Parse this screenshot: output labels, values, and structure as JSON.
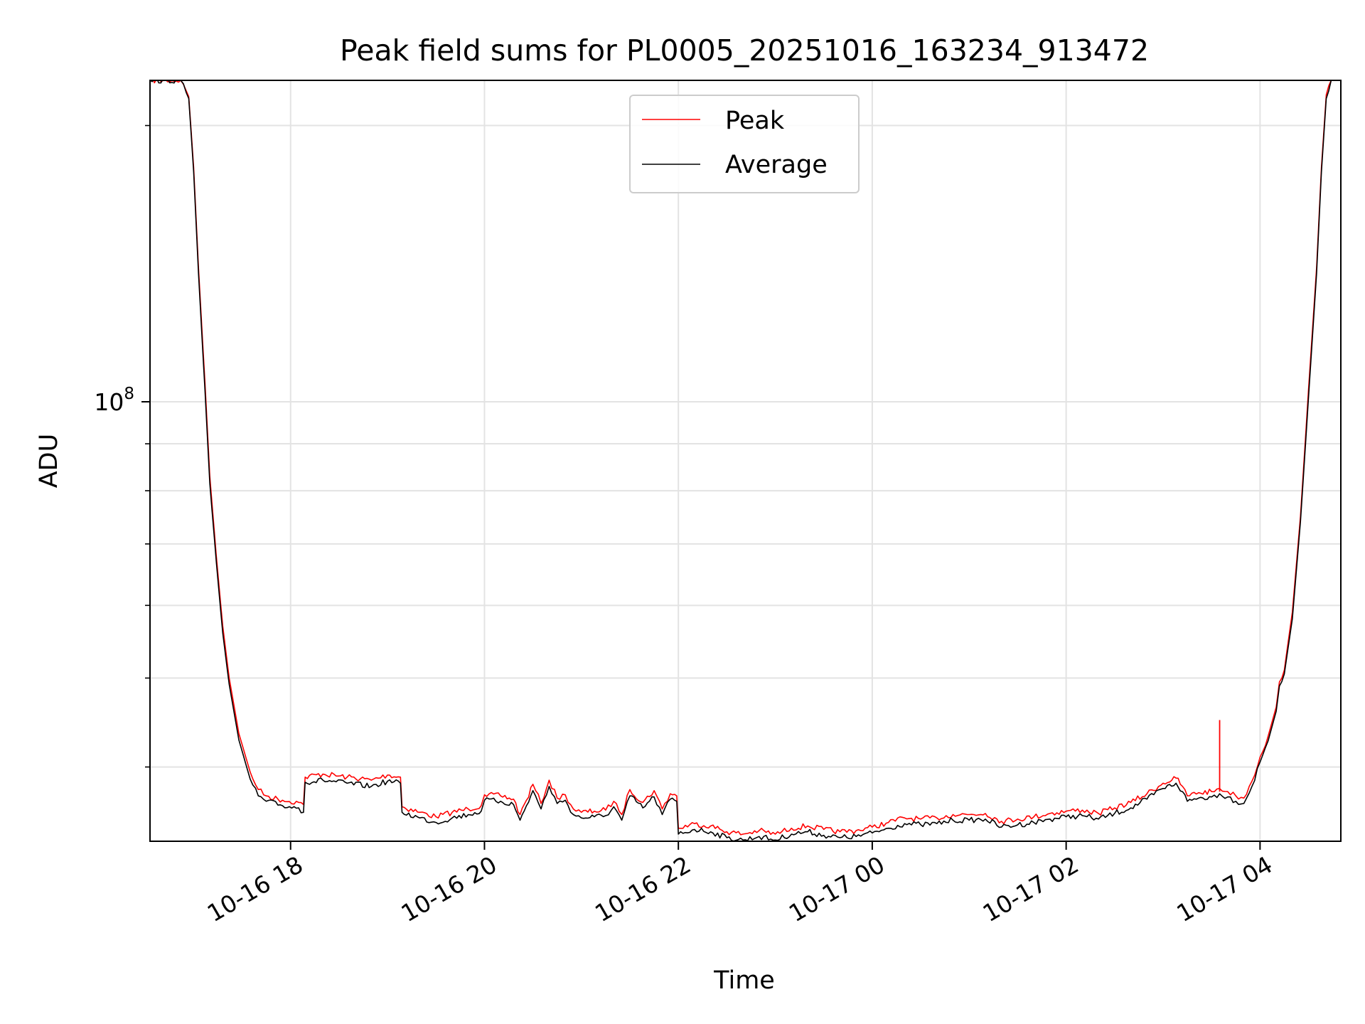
{
  "chart_data": {
    "type": "line",
    "title": "Peak field sums for PL0005_20251016_163234_913472",
    "xlabel": "Time",
    "ylabel": "ADU",
    "y_scale": "log",
    "ylim": [
      33200000,
      224000000
    ],
    "xlim": [
      "2025-10-16 16:33",
      "2025-10-17 04:50"
    ],
    "grid": true,
    "legend_position": "top-center",
    "x_ticks": [
      {
        "value": "2025-10-16 18:00",
        "label": "10-16 18"
      },
      {
        "value": "2025-10-16 20:00",
        "label": "10-16 20"
      },
      {
        "value": "2025-10-16 22:00",
        "label": "10-16 22"
      },
      {
        "value": "2025-10-17 00:00",
        "label": "10-17 00"
      },
      {
        "value": "2025-10-17 02:00",
        "label": "10-17 02"
      },
      {
        "value": "2025-10-17 04:00",
        "label": "10-17 04"
      }
    ],
    "y_major_ticks": [
      {
        "value": 100000000,
        "base": "10",
        "exp": "8"
      }
    ],
    "y_minor_ticks": [
      40000000,
      50000000,
      60000000,
      70000000,
      80000000,
      90000000,
      200000000
    ],
    "series": [
      {
        "name": "Peak",
        "color": "#ff0000",
        "points": [
          [
            "2025-10-16 16:33",
            224000000
          ],
          [
            "2025-10-16 16:52",
            224000000
          ],
          [
            "2025-10-16 16:57",
            215000000
          ],
          [
            "2025-10-16 17:00",
            180000000
          ],
          [
            "2025-10-16 17:03",
            140000000
          ],
          [
            "2025-10-16 17:07",
            105000000
          ],
          [
            "2025-10-16 17:10",
            83000000
          ],
          [
            "2025-10-16 17:14",
            68000000
          ],
          [
            "2025-10-16 17:18",
            57000000
          ],
          [
            "2025-10-16 17:22",
            50000000
          ],
          [
            "2025-10-16 17:28",
            43500000
          ],
          [
            "2025-10-16 17:35",
            39500000
          ],
          [
            "2025-10-16 17:40",
            37800000
          ],
          [
            "2025-10-16 17:45",
            37200000
          ],
          [
            "2025-10-16 17:55",
            36800000
          ],
          [
            "2025-10-16 18:05",
            36600000
          ],
          [
            "2025-10-16 18:08",
            36400000
          ],
          [
            "2025-10-16 18:09",
            39000000
          ],
          [
            "2025-10-16 18:20",
            39300000
          ],
          [
            "2025-10-16 18:35",
            39000000
          ],
          [
            "2025-10-16 18:50",
            38700000
          ],
          [
            "2025-10-16 19:00",
            39200000
          ],
          [
            "2025-10-16 19:08",
            39000000
          ],
          [
            "2025-10-16 19:09",
            36200000
          ],
          [
            "2025-10-16 19:20",
            35700000
          ],
          [
            "2025-10-16 19:30",
            35300000
          ],
          [
            "2025-10-16 19:40",
            35700000
          ],
          [
            "2025-10-16 19:50",
            36000000
          ],
          [
            "2025-10-16 19:58",
            36300000
          ],
          [
            "2025-10-16 20:00",
            37300000
          ],
          [
            "2025-10-16 20:10",
            37200000
          ],
          [
            "2025-10-16 20:18",
            36900000
          ],
          [
            "2025-10-16 20:22",
            35500000
          ],
          [
            "2025-10-16 20:26",
            36800000
          ],
          [
            "2025-10-16 20:30",
            38300000
          ],
          [
            "2025-10-16 20:35",
            36500000
          ],
          [
            "2025-10-16 20:40",
            38700000
          ],
          [
            "2025-10-16 20:45",
            37000000
          ],
          [
            "2025-10-16 20:50",
            37300000
          ],
          [
            "2025-10-16 20:55",
            36000000
          ],
          [
            "2025-10-16 21:00",
            35700000
          ],
          [
            "2025-10-16 21:08",
            35800000
          ],
          [
            "2025-10-16 21:15",
            35900000
          ],
          [
            "2025-10-16 21:20",
            36700000
          ],
          [
            "2025-10-16 21:25",
            35500000
          ],
          [
            "2025-10-16 21:30",
            37800000
          ],
          [
            "2025-10-16 21:38",
            36600000
          ],
          [
            "2025-10-16 21:45",
            37700000
          ],
          [
            "2025-10-16 21:50",
            36000000
          ],
          [
            "2025-10-16 21:55",
            37400000
          ],
          [
            "2025-10-16 21:59",
            37200000
          ],
          [
            "2025-10-16 22:00",
            34300000
          ],
          [
            "2025-10-16 22:10",
            34700000
          ],
          [
            "2025-10-16 22:20",
            34500000
          ],
          [
            "2025-10-16 22:30",
            34000000
          ],
          [
            "2025-10-16 22:40",
            33800000
          ],
          [
            "2025-10-16 22:50",
            34100000
          ],
          [
            "2025-10-16 23:00",
            33800000
          ],
          [
            "2025-10-16 23:10",
            34300000
          ],
          [
            "2025-10-16 23:20",
            34500000
          ],
          [
            "2025-10-16 23:30",
            34200000
          ],
          [
            "2025-10-16 23:40",
            34000000
          ],
          [
            "2025-10-16 23:50",
            34100000
          ],
          [
            "2025-10-17 00:00",
            34400000
          ],
          [
            "2025-10-17 00:10",
            34800000
          ],
          [
            "2025-10-17 00:20",
            35200000
          ],
          [
            "2025-10-17 00:30",
            35100000
          ],
          [
            "2025-10-17 00:40",
            35200000
          ],
          [
            "2025-10-17 00:50",
            35500000
          ],
          [
            "2025-10-17 01:00",
            35500000
          ],
          [
            "2025-10-17 01:10",
            35600000
          ],
          [
            "2025-10-17 01:20",
            34900000
          ],
          [
            "2025-10-17 01:30",
            35100000
          ],
          [
            "2025-10-17 01:40",
            35300000
          ],
          [
            "2025-10-17 01:50",
            35600000
          ],
          [
            "2025-10-17 02:00",
            35800000
          ],
          [
            "2025-10-17 02:10",
            35900000
          ],
          [
            "2025-10-17 02:20",
            35600000
          ],
          [
            "2025-10-17 02:30",
            36100000
          ],
          [
            "2025-10-17 02:40",
            36600000
          ],
          [
            "2025-10-17 02:50",
            37400000
          ],
          [
            "2025-10-17 03:00",
            38400000
          ],
          [
            "2025-10-17 03:08",
            38900000
          ],
          [
            "2025-10-17 03:12",
            38100000
          ],
          [
            "2025-10-17 03:15",
            37200000
          ],
          [
            "2025-10-17 03:22",
            37500000
          ],
          [
            "2025-10-17 03:30",
            37600000
          ],
          [
            "2025-10-17 03:35",
            37900000
          ],
          [
            "2025-10-17 03:40",
            37600000
          ],
          [
            "2025-10-17 03:45",
            37200000
          ],
          [
            "2025-10-17 03:50",
            37000000
          ],
          [
            "2025-10-17 03:55",
            38600000
          ],
          [
            "2025-10-17 04:00",
            41000000
          ],
          [
            "2025-10-17 04:05",
            43200000
          ],
          [
            "2025-10-17 04:10",
            46500000
          ],
          [
            "2025-10-17 04:12",
            49500000
          ],
          [
            "2025-10-17 04:15",
            51000000
          ],
          [
            "2025-10-17 04:20",
            59000000
          ],
          [
            "2025-10-17 04:25",
            75000000
          ],
          [
            "2025-10-17 04:30",
            103000000
          ],
          [
            "2025-10-17 04:35",
            140000000
          ],
          [
            "2025-10-17 04:38",
            180000000
          ],
          [
            "2025-10-17 04:41",
            216000000
          ],
          [
            "2025-10-17 04:44",
            224000000
          ]
        ],
        "spikes": [
          {
            "x": "2025-10-17 03:35",
            "y": 45000000
          }
        ]
      },
      {
        "name": "Average",
        "color": "#000000",
        "points": [
          [
            "2025-10-16 16:33",
            224000000
          ],
          [
            "2025-10-16 16:52",
            224000000
          ],
          [
            "2025-10-16 16:57",
            214000000
          ],
          [
            "2025-10-16 17:00",
            178000000
          ],
          [
            "2025-10-16 17:03",
            138000000
          ],
          [
            "2025-10-16 17:07",
            103000000
          ],
          [
            "2025-10-16 17:10",
            81500000
          ],
          [
            "2025-10-16 17:14",
            67000000
          ],
          [
            "2025-10-16 17:18",
            56000000
          ],
          [
            "2025-10-16 17:22",
            49200000
          ],
          [
            "2025-10-16 17:28",
            42800000
          ],
          [
            "2025-10-16 17:35",
            38800000
          ],
          [
            "2025-10-16 17:40",
            37200000
          ],
          [
            "2025-10-16 17:45",
            36700000
          ],
          [
            "2025-10-16 17:55",
            36300000
          ],
          [
            "2025-10-16 18:05",
            36100000
          ],
          [
            "2025-10-16 18:08",
            35700000
          ],
          [
            "2025-10-16 18:09",
            38500000
          ],
          [
            "2025-10-16 18:20",
            38700000
          ],
          [
            "2025-10-16 18:35",
            38400000
          ],
          [
            "2025-10-16 18:50",
            38100000
          ],
          [
            "2025-10-16 19:00",
            38600000
          ],
          [
            "2025-10-16 19:08",
            38400000
          ],
          [
            "2025-10-16 19:09",
            35700000
          ],
          [
            "2025-10-16 19:20",
            35200000
          ],
          [
            "2025-10-16 19:30",
            34800000
          ],
          [
            "2025-10-16 19:40",
            35200000
          ],
          [
            "2025-10-16 19:50",
            35500000
          ],
          [
            "2025-10-16 19:58",
            35800000
          ],
          [
            "2025-10-16 20:00",
            36800000
          ],
          [
            "2025-10-16 20:10",
            36700000
          ],
          [
            "2025-10-16 20:18",
            36400000
          ],
          [
            "2025-10-16 20:22",
            35000000
          ],
          [
            "2025-10-16 20:26",
            36300000
          ],
          [
            "2025-10-16 20:30",
            37700000
          ],
          [
            "2025-10-16 20:35",
            36000000
          ],
          [
            "2025-10-16 20:40",
            38100000
          ],
          [
            "2025-10-16 20:45",
            36500000
          ],
          [
            "2025-10-16 20:50",
            36800000
          ],
          [
            "2025-10-16 20:55",
            35500000
          ],
          [
            "2025-10-16 21:00",
            35200000
          ],
          [
            "2025-10-16 21:08",
            35300000
          ],
          [
            "2025-10-16 21:15",
            35400000
          ],
          [
            "2025-10-16 21:20",
            36200000
          ],
          [
            "2025-10-16 21:25",
            35000000
          ],
          [
            "2025-10-16 21:30",
            37200000
          ],
          [
            "2025-10-16 21:38",
            36100000
          ],
          [
            "2025-10-16 21:45",
            37100000
          ],
          [
            "2025-10-16 21:50",
            35500000
          ],
          [
            "2025-10-16 21:55",
            36900000
          ],
          [
            "2025-10-16 21:59",
            36700000
          ],
          [
            "2025-10-16 22:00",
            33800000
          ],
          [
            "2025-10-16 22:10",
            34200000
          ],
          [
            "2025-10-16 22:20",
            34000000
          ],
          [
            "2025-10-16 22:30",
            33500000
          ],
          [
            "2025-10-16 22:40",
            33300000
          ],
          [
            "2025-10-16 22:50",
            33600000
          ],
          [
            "2025-10-16 23:00",
            33300000
          ],
          [
            "2025-10-16 23:10",
            33800000
          ],
          [
            "2025-10-16 23:20",
            34000000
          ],
          [
            "2025-10-16 23:30",
            33700000
          ],
          [
            "2025-10-16 23:40",
            33500000
          ],
          [
            "2025-10-16 23:50",
            33600000
          ],
          [
            "2025-10-17 00:00",
            33900000
          ],
          [
            "2025-10-17 00:10",
            34300000
          ],
          [
            "2025-10-17 00:20",
            34700000
          ],
          [
            "2025-10-17 00:30",
            34600000
          ],
          [
            "2025-10-17 00:40",
            34700000
          ],
          [
            "2025-10-17 00:50",
            35000000
          ],
          [
            "2025-10-17 01:00",
            35000000
          ],
          [
            "2025-10-17 01:10",
            35100000
          ],
          [
            "2025-10-17 01:20",
            34400000
          ],
          [
            "2025-10-17 01:30",
            34600000
          ],
          [
            "2025-10-17 01:40",
            34800000
          ],
          [
            "2025-10-17 01:50",
            35100000
          ],
          [
            "2025-10-17 02:00",
            35300000
          ],
          [
            "2025-10-17 02:10",
            35400000
          ],
          [
            "2025-10-17 02:20",
            35100000
          ],
          [
            "2025-10-17 02:30",
            35600000
          ],
          [
            "2025-10-17 02:40",
            36100000
          ],
          [
            "2025-10-17 02:50",
            36900000
          ],
          [
            "2025-10-17 03:00",
            37900000
          ],
          [
            "2025-10-17 03:08",
            38400000
          ],
          [
            "2025-10-17 03:12",
            37600000
          ],
          [
            "2025-10-17 03:15",
            36700000
          ],
          [
            "2025-10-17 03:22",
            37000000
          ],
          [
            "2025-10-17 03:30",
            37100000
          ],
          [
            "2025-10-17 03:35",
            37400000
          ],
          [
            "2025-10-17 03:40",
            37100000
          ],
          [
            "2025-10-17 03:45",
            36700000
          ],
          [
            "2025-10-17 03:50",
            36500000
          ],
          [
            "2025-10-17 03:55",
            38100000
          ],
          [
            "2025-10-17 04:00",
            40500000
          ],
          [
            "2025-10-17 04:05",
            42700000
          ],
          [
            "2025-10-17 04:10",
            46000000
          ],
          [
            "2025-10-17 04:12",
            49000000
          ],
          [
            "2025-10-17 04:15",
            50500000
          ],
          [
            "2025-10-17 04:20",
            58000000
          ],
          [
            "2025-10-17 04:25",
            74000000
          ],
          [
            "2025-10-17 04:30",
            101000000
          ],
          [
            "2025-10-17 04:35",
            138000000
          ],
          [
            "2025-10-17 04:38",
            178000000
          ],
          [
            "2025-10-17 04:41",
            214000000
          ],
          [
            "2025-10-17 04:44",
            224000000
          ]
        ]
      }
    ]
  }
}
